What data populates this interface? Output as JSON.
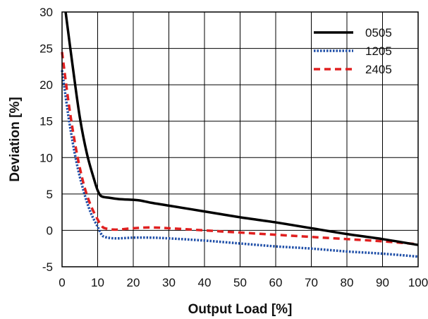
{
  "chart_data": {
    "type": "line",
    "title": "",
    "xlabel": "Output Load [%]",
    "ylabel": "Deviation [%]",
    "xlim": [
      0,
      100
    ],
    "ylim": [
      -5,
      30
    ],
    "xticks": [
      0,
      10,
      20,
      30,
      40,
      50,
      60,
      70,
      80,
      90,
      100
    ],
    "yticks": [
      -5,
      0,
      5,
      10,
      15,
      20,
      25,
      30
    ],
    "grid": true,
    "legend_position": "top-right",
    "series": [
      {
        "name": "0505",
        "color": "#000000",
        "style": "solid",
        "x": [
          1,
          3,
          5,
          7,
          9,
          10,
          11,
          13,
          16,
          20,
          22,
          25,
          30,
          40,
          50,
          60,
          70,
          80,
          90,
          100
        ],
        "y": [
          30,
          22.5,
          15.5,
          10.5,
          7,
          5.5,
          4.7,
          4.5,
          4.3,
          4.2,
          4.1,
          3.8,
          3.4,
          2.6,
          1.8,
          1.1,
          0.3,
          -0.5,
          -1.2,
          -2.0
        ]
      },
      {
        "name": "1205",
        "color": "#1f4fa8",
        "style": "dotted",
        "x": [
          0,
          2,
          4,
          6,
          8,
          10,
          11,
          12,
          15,
          20,
          25,
          30,
          40,
          50,
          60,
          70,
          80,
          90,
          100
        ],
        "y": [
          22,
          15,
          9.5,
          5.5,
          2.5,
          0.5,
          -0.5,
          -0.9,
          -1.1,
          -1.0,
          -1.0,
          -1.1,
          -1.4,
          -1.8,
          -2.2,
          -2.5,
          -2.9,
          -3.2,
          -3.6
        ]
      },
      {
        "name": "2405",
        "color": "#e02020",
        "style": "dashed",
        "x": [
          0,
          2,
          4,
          6,
          8,
          10,
          11,
          12,
          15,
          20,
          25,
          30,
          40,
          50,
          60,
          70,
          80,
          90,
          100
        ],
        "y": [
          24.5,
          17,
          11,
          6.5,
          3.5,
          1.5,
          0.7,
          0.3,
          0.1,
          0.3,
          0.4,
          0.3,
          0.0,
          -0.3,
          -0.6,
          -0.9,
          -1.2,
          -1.5,
          -1.9
        ]
      }
    ]
  }
}
